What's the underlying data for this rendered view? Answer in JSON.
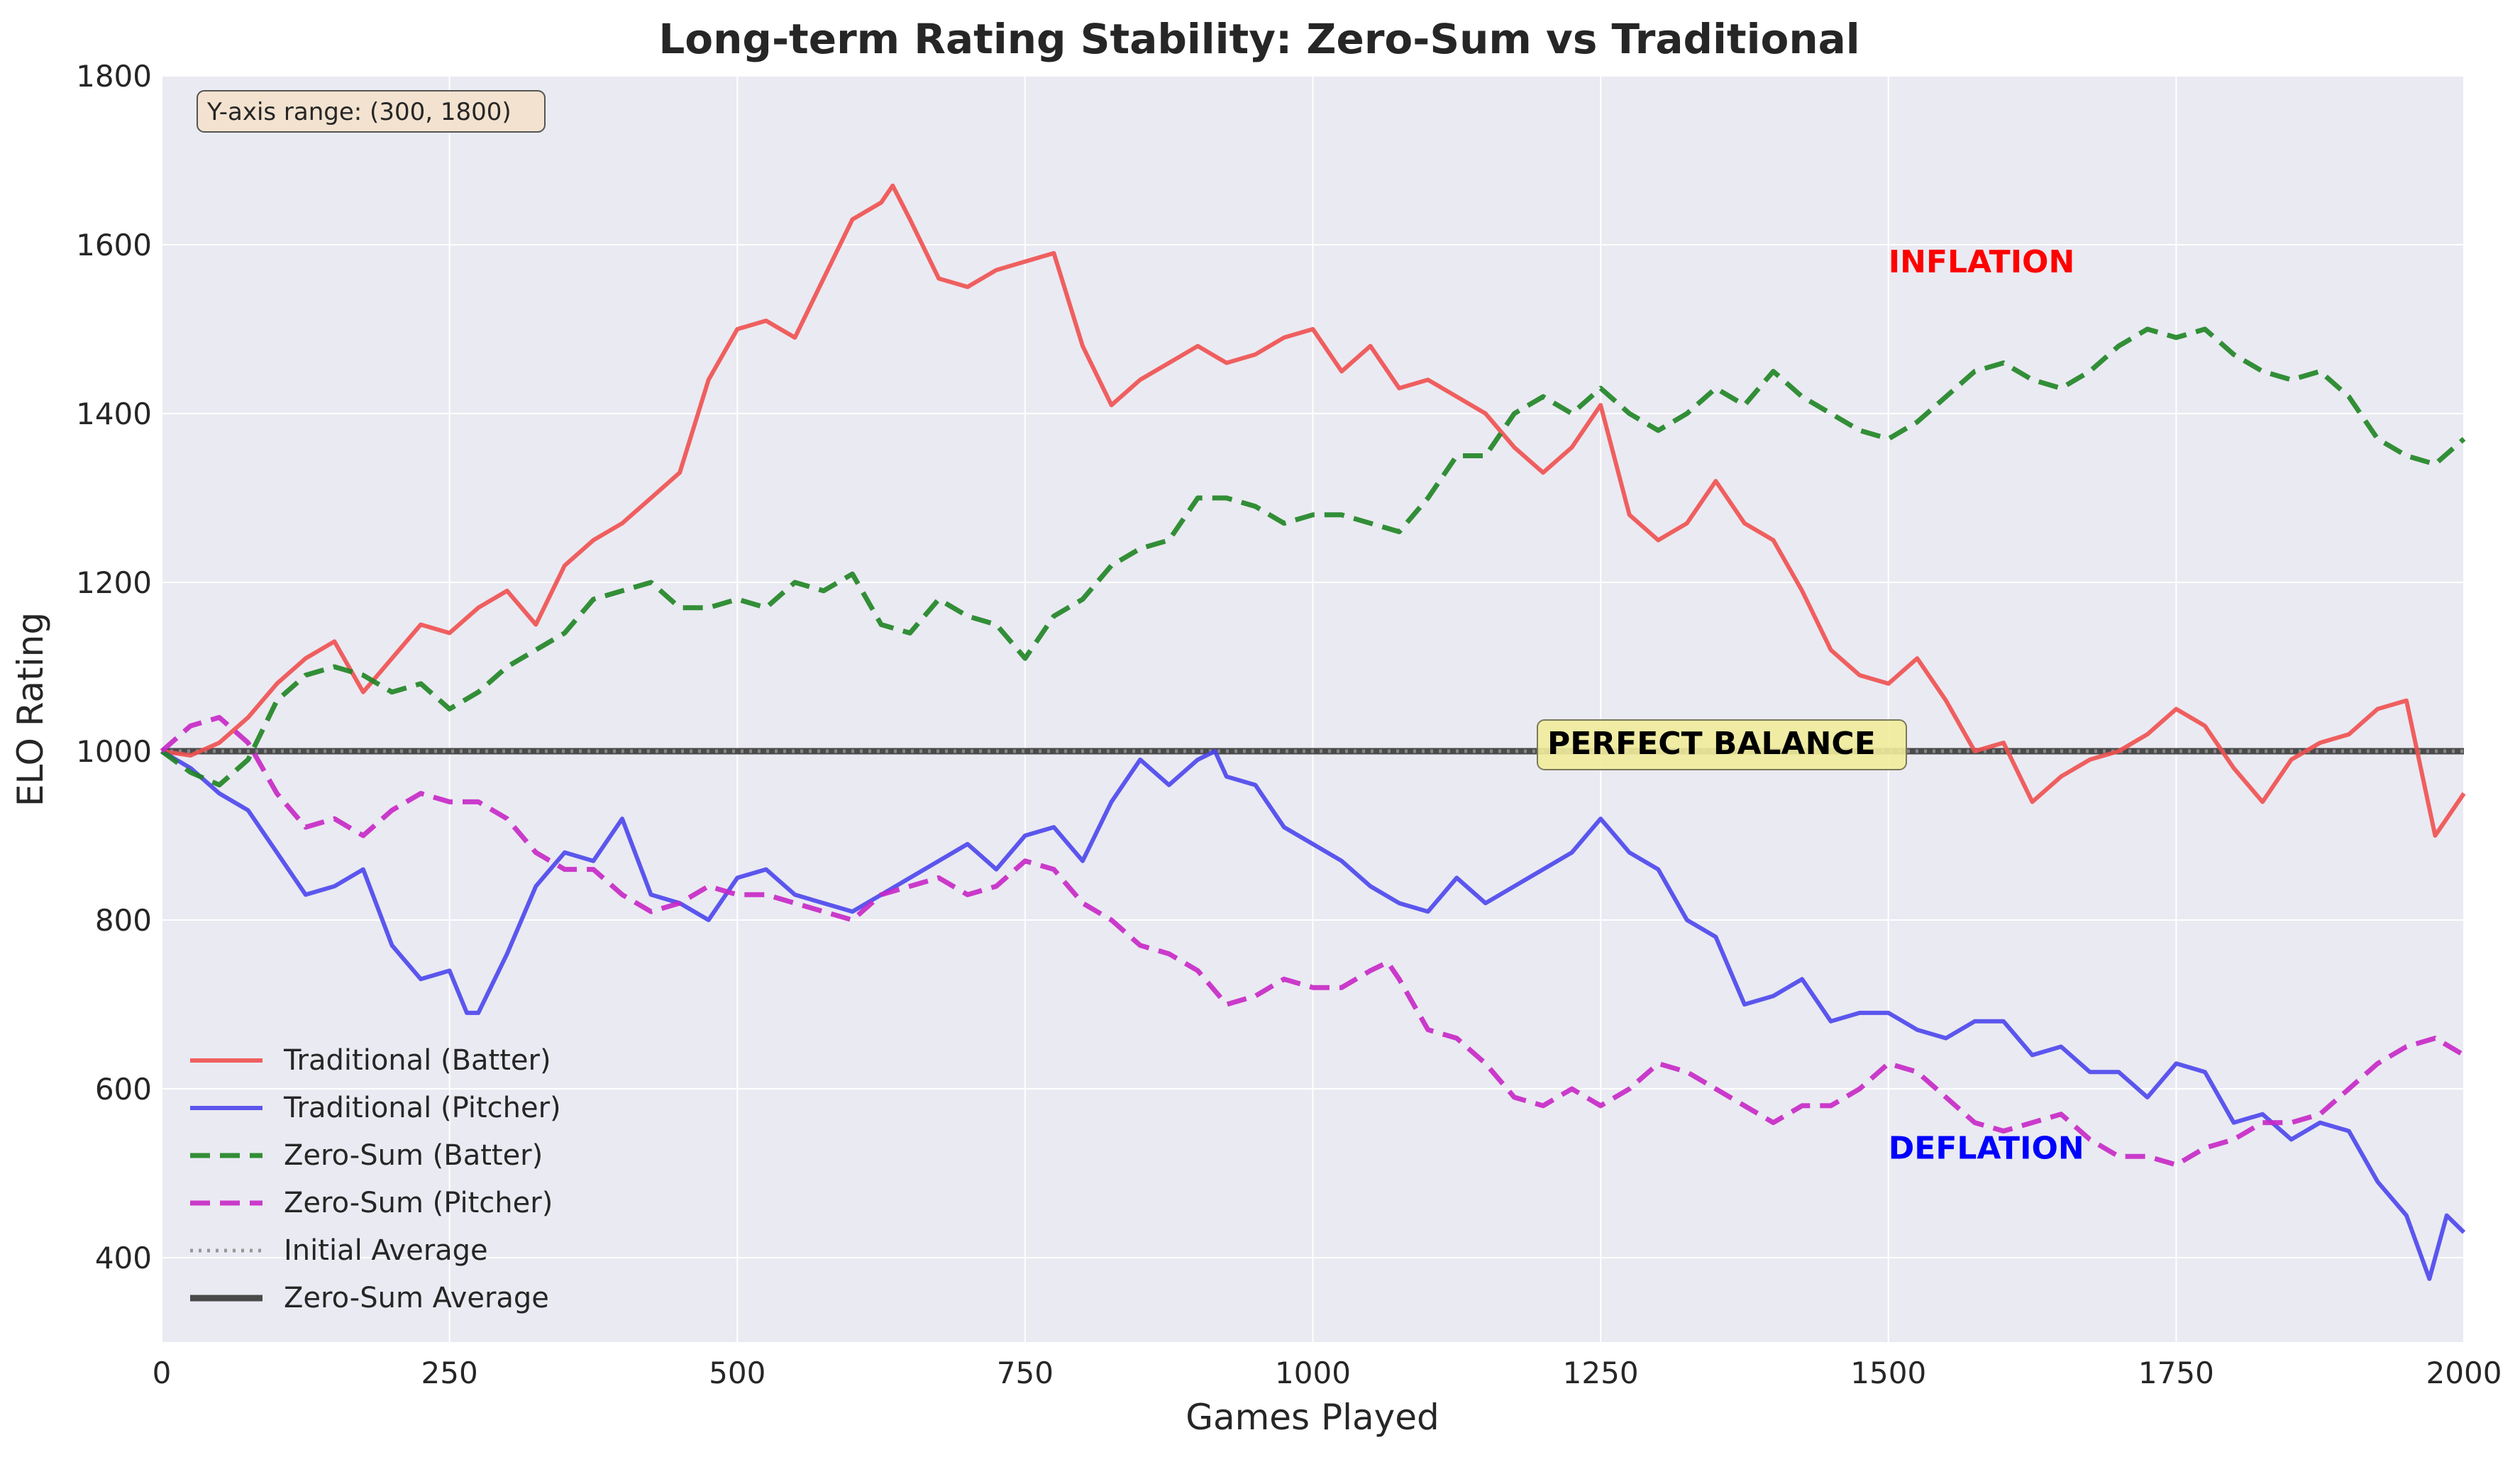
{
  "colors": {
    "plot_bg": "#EAEAF2",
    "grid": "#FFFFFF",
    "traditional_batter": "#F0504F",
    "traditional_pitcher": "#4B46EC",
    "zero_sum_batter": "#1E8422",
    "zero_sum_pitcher": "#C627C5",
    "initial_average": "#8E8E8E",
    "zero_sum_average": "#2E2E2E",
    "inflation_text": "#FF0000",
    "deflation_text": "#0000FF",
    "range_box_fill": "#F2E2CC",
    "balance_box_fill": "#F1EC9B"
  },
  "chart_data": {
    "type": "line",
    "title": "Long-term Rating Stability: Zero-Sum vs Traditional",
    "xlabel": "Games Played",
    "ylabel": "ELO Rating",
    "xlim": [
      0,
      2000
    ],
    "ylim": [
      300,
      1800
    ],
    "xticks": [
      0,
      250,
      500,
      750,
      1000,
      1250,
      1500,
      1750,
      2000
    ],
    "yticks": [
      400,
      600,
      800,
      1000,
      1200,
      1400,
      1600,
      1800
    ],
    "grid": true,
    "legend_position": "lower-left",
    "series": [
      {
        "name": "Traditional (Batter)",
        "style": "solid",
        "x": [
          0,
          25,
          50,
          75,
          100,
          125,
          150,
          175,
          200,
          225,
          250,
          275,
          300,
          325,
          350,
          375,
          400,
          425,
          450,
          475,
          500,
          525,
          550,
          575,
          600,
          625,
          635,
          650,
          675,
          700,
          725,
          750,
          775,
          800,
          825,
          850,
          875,
          900,
          925,
          950,
          975,
          1000,
          1025,
          1050,
          1075,
          1100,
          1125,
          1150,
          1175,
          1200,
          1225,
          1250,
          1275,
          1300,
          1325,
          1350,
          1375,
          1400,
          1425,
          1450,
          1475,
          1500,
          1525,
          1550,
          1575,
          1600,
          1625,
          1650,
          1675,
          1700,
          1725,
          1750,
          1775,
          1800,
          1825,
          1850,
          1875,
          1900,
          1925,
          1950,
          1975,
          2000
        ],
        "y": [
          1000,
          995,
          1010,
          1040,
          1080,
          1110,
          1130,
          1070,
          1110,
          1150,
          1140,
          1170,
          1190,
          1150,
          1220,
          1250,
          1270,
          1300,
          1330,
          1440,
          1500,
          1510,
          1490,
          1560,
          1630,
          1650,
          1670,
          1630,
          1560,
          1550,
          1570,
          1580,
          1590,
          1480,
          1410,
          1440,
          1460,
          1480,
          1460,
          1470,
          1490,
          1500,
          1450,
          1480,
          1430,
          1440,
          1420,
          1400,
          1360,
          1330,
          1360,
          1410,
          1280,
          1250,
          1270,
          1320,
          1270,
          1250,
          1190,
          1120,
          1090,
          1080,
          1110,
          1060,
          1000,
          1010,
          940,
          970,
          990,
          1000,
          1020,
          1050,
          1030,
          980,
          940,
          990,
          1010,
          1020,
          1050,
          1060,
          900,
          950
        ]
      },
      {
        "name": "Traditional (Pitcher)",
        "style": "solid",
        "x": [
          0,
          25,
          50,
          75,
          100,
          125,
          150,
          175,
          200,
          225,
          250,
          265,
          275,
          300,
          325,
          350,
          375,
          400,
          425,
          450,
          475,
          500,
          525,
          550,
          575,
          600,
          625,
          650,
          675,
          700,
          725,
          750,
          775,
          800,
          825,
          850,
          875,
          900,
          915,
          925,
          950,
          975,
          1000,
          1025,
          1050,
          1075,
          1100,
          1125,
          1150,
          1175,
          1200,
          1225,
          1250,
          1275,
          1300,
          1325,
          1350,
          1375,
          1400,
          1425,
          1450,
          1475,
          1500,
          1525,
          1550,
          1575,
          1600,
          1625,
          1650,
          1675,
          1700,
          1725,
          1750,
          1775,
          1800,
          1825,
          1850,
          1875,
          1900,
          1925,
          1950,
          1970,
          1985,
          2000
        ],
        "y": [
          1000,
          980,
          950,
          930,
          880,
          830,
          840,
          860,
          770,
          730,
          740,
          690,
          690,
          760,
          840,
          880,
          870,
          920,
          830,
          820,
          800,
          850,
          860,
          830,
          820,
          810,
          830,
          850,
          870,
          890,
          860,
          900,
          910,
          870,
          940,
          990,
          960,
          990,
          1000,
          970,
          960,
          910,
          890,
          870,
          840,
          820,
          810,
          850,
          820,
          840,
          860,
          880,
          920,
          880,
          860,
          800,
          780,
          700,
          710,
          730,
          680,
          690,
          690,
          670,
          660,
          680,
          680,
          640,
          650,
          620,
          620,
          590,
          630,
          620,
          560,
          570,
          540,
          560,
          550,
          490,
          450,
          375,
          450,
          430
        ]
      },
      {
        "name": "Zero-Sum (Batter)",
        "style": "dashed",
        "x": [
          0,
          25,
          50,
          75,
          100,
          125,
          150,
          175,
          200,
          225,
          250,
          275,
          300,
          325,
          350,
          375,
          400,
          425,
          450,
          475,
          500,
          525,
          550,
          575,
          600,
          625,
          650,
          675,
          700,
          725,
          750,
          775,
          800,
          825,
          850,
          875,
          900,
          925,
          950,
          975,
          1000,
          1025,
          1050,
          1075,
          1100,
          1125,
          1150,
          1175,
          1200,
          1225,
          1250,
          1275,
          1300,
          1325,
          1350,
          1375,
          1400,
          1425,
          1450,
          1475,
          1500,
          1525,
          1550,
          1575,
          1600,
          1625,
          1650,
          1675,
          1700,
          1725,
          1750,
          1775,
          1800,
          1825,
          1850,
          1875,
          1900,
          1925,
          1950,
          1975,
          2000
        ],
        "y": [
          1000,
          975,
          960,
          990,
          1060,
          1090,
          1100,
          1090,
          1070,
          1080,
          1050,
          1070,
          1100,
          1120,
          1140,
          1180,
          1190,
          1200,
          1170,
          1170,
          1180,
          1170,
          1200,
          1190,
          1210,
          1150,
          1140,
          1180,
          1160,
          1150,
          1110,
          1160,
          1180,
          1220,
          1240,
          1250,
          1300,
          1300,
          1290,
          1270,
          1280,
          1280,
          1270,
          1260,
          1300,
          1350,
          1350,
          1400,
          1420,
          1400,
          1430,
          1400,
          1380,
          1400,
          1430,
          1410,
          1450,
          1420,
          1400,
          1380,
          1370,
          1390,
          1420,
          1450,
          1460,
          1440,
          1430,
          1450,
          1480,
          1500,
          1490,
          1500,
          1470,
          1450,
          1440,
          1450,
          1420,
          1370,
          1350,
          1340,
          1370
        ]
      },
      {
        "name": "Zero-Sum (Pitcher)",
        "style": "dashed",
        "x": [
          0,
          25,
          50,
          75,
          100,
          125,
          150,
          175,
          200,
          225,
          250,
          275,
          300,
          325,
          350,
          375,
          400,
          425,
          450,
          475,
          500,
          525,
          550,
          575,
          600,
          625,
          650,
          675,
          700,
          725,
          750,
          775,
          800,
          825,
          850,
          875,
          900,
          925,
          950,
          975,
          1000,
          1025,
          1050,
          1065,
          1075,
          1100,
          1125,
          1150,
          1175,
          1200,
          1225,
          1250,
          1275,
          1300,
          1325,
          1350,
          1375,
          1400,
          1425,
          1450,
          1475,
          1500,
          1525,
          1550,
          1575,
          1600,
          1625,
          1650,
          1675,
          1700,
          1725,
          1750,
          1775,
          1800,
          1825,
          1850,
          1875,
          1900,
          1925,
          1950,
          1975,
          2000
        ],
        "y": [
          1000,
          1030,
          1040,
          1010,
          950,
          910,
          920,
          900,
          930,
          950,
          940,
          940,
          920,
          880,
          860,
          860,
          830,
          810,
          820,
          840,
          830,
          830,
          820,
          810,
          800,
          830,
          840,
          850,
          830,
          840,
          870,
          860,
          820,
          800,
          770,
          760,
          740,
          700,
          710,
          730,
          720,
          720,
          740,
          750,
          730,
          670,
          660,
          630,
          590,
          580,
          600,
          580,
          600,
          630,
          620,
          600,
          580,
          560,
          580,
          580,
          600,
          630,
          620,
          590,
          560,
          550,
          560,
          570,
          540,
          520,
          520,
          510,
          530,
          540,
          560,
          560,
          570,
          600,
          630,
          650,
          660,
          640
        ]
      },
      {
        "name": "Initial Average",
        "style": "dotted",
        "x": [
          0,
          2000
        ],
        "y": [
          1000,
          1000
        ]
      },
      {
        "name": "Zero-Sum Average",
        "style": "solid-thick",
        "x": [
          0,
          2000
        ],
        "y": [
          1000,
          1000
        ]
      }
    ],
    "annotations": [
      {
        "key": "inflation",
        "text": "INFLATION",
        "x": 1500,
        "y": 1580
      },
      {
        "key": "deflation",
        "text": "DEFLATION",
        "x": 1500,
        "y": 530
      },
      {
        "key": "balance",
        "text": "PERFECT BALANCE",
        "x": 1200,
        "y": 1000
      },
      {
        "key": "range",
        "text": "Y-axis range: (300, 1800)"
      }
    ]
  }
}
